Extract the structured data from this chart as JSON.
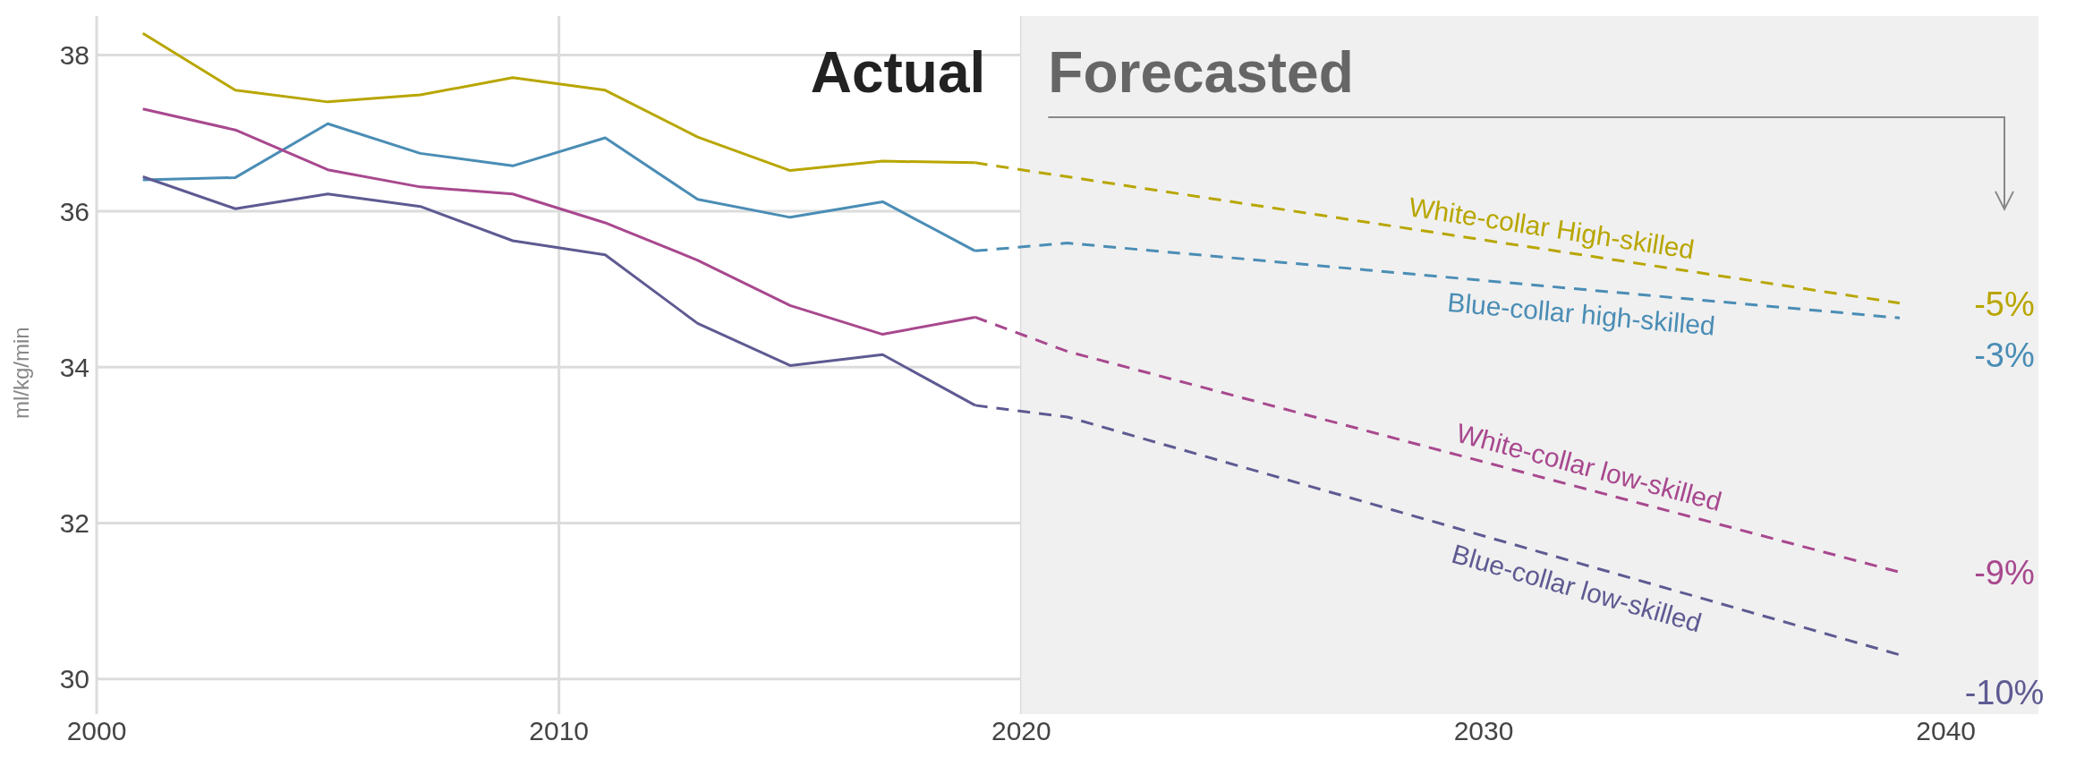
{
  "chart_data": {
    "type": "line",
    "ylabel": "ml/kg/min",
    "xlim": [
      2000,
      2042
    ],
    "xticks": [
      2000,
      2010,
      2020,
      2030,
      2040
    ],
    "ylim": [
      29.55,
      38.5
    ],
    "yticks": [
      30,
      32,
      34,
      36,
      38
    ],
    "grid": true,
    "marker": "none",
    "series": [
      {
        "color": "#b8a600",
        "line_style": "solid",
        "x": [
          2001,
          2003,
          2005,
          2007,
          2009,
          2011,
          2013,
          2015,
          2017,
          2019
        ],
        "values": [
          38.28,
          37.55,
          37.4,
          37.49,
          37.71,
          37.55,
          36.95,
          36.52,
          36.64,
          36.62
        ]
      },
      {
        "color": "#4a8db5",
        "line_style": "solid",
        "x": [
          2001,
          2003,
          2005,
          2007,
          2009,
          2011,
          2013,
          2015,
          2017,
          2019
        ],
        "values": [
          36.4,
          36.43,
          37.12,
          36.74,
          36.58,
          36.94,
          36.15,
          35.92,
          36.12,
          35.49
        ]
      },
      {
        "color": "#a8488e",
        "line_style": "solid",
        "x": [
          2001,
          2003,
          2005,
          2007,
          2009,
          2011,
          2013,
          2015,
          2017,
          2019
        ],
        "values": [
          37.31,
          37.04,
          36.53,
          36.31,
          36.22,
          35.85,
          35.37,
          34.79,
          34.42,
          34.64
        ]
      },
      {
        "color": "#5e5a92",
        "line_style": "solid",
        "x": [
          2001,
          2003,
          2005,
          2007,
          2009,
          2011,
          2013,
          2015,
          2017,
          2019
        ],
        "values": [
          36.44,
          36.03,
          36.22,
          36.06,
          35.62,
          35.44,
          34.56,
          34.02,
          34.16,
          33.51
        ]
      },
      {
        "name": "White-collar High-skilled",
        "color": "#b8a600",
        "line_style": "dashed",
        "x": [
          2019,
          2039
        ],
        "values": [
          36.62,
          34.82
        ]
      },
      {
        "name": "Blue-collar high-skilled",
        "color": "#4a8db5",
        "line_style": "dashed",
        "x": [
          2019,
          2021,
          2039
        ],
        "values": [
          35.49,
          35.59,
          34.63
        ]
      },
      {
        "name": "White-collar low-skilled",
        "color": "#a8488e",
        "line_style": "dashed",
        "x": [
          2019,
          2021,
          2039
        ],
        "values": [
          34.64,
          34.2,
          31.37
        ]
      },
      {
        "name": "Blue-collar low-skilled",
        "color": "#5e5a92",
        "line_style": "dashed",
        "x": [
          2019,
          2021,
          2039
        ],
        "values": [
          33.51,
          33.36,
          30.31
        ]
      }
    ],
    "bands": [
      {
        "axis": "x",
        "from": 2020,
        "to": 2042,
        "label": "Forecasted",
        "color": "#f0f0f0"
      }
    ],
    "annotations": [
      "Actual",
      "-5%",
      "-3%",
      "-9%",
      "-10%"
    ]
  }
}
